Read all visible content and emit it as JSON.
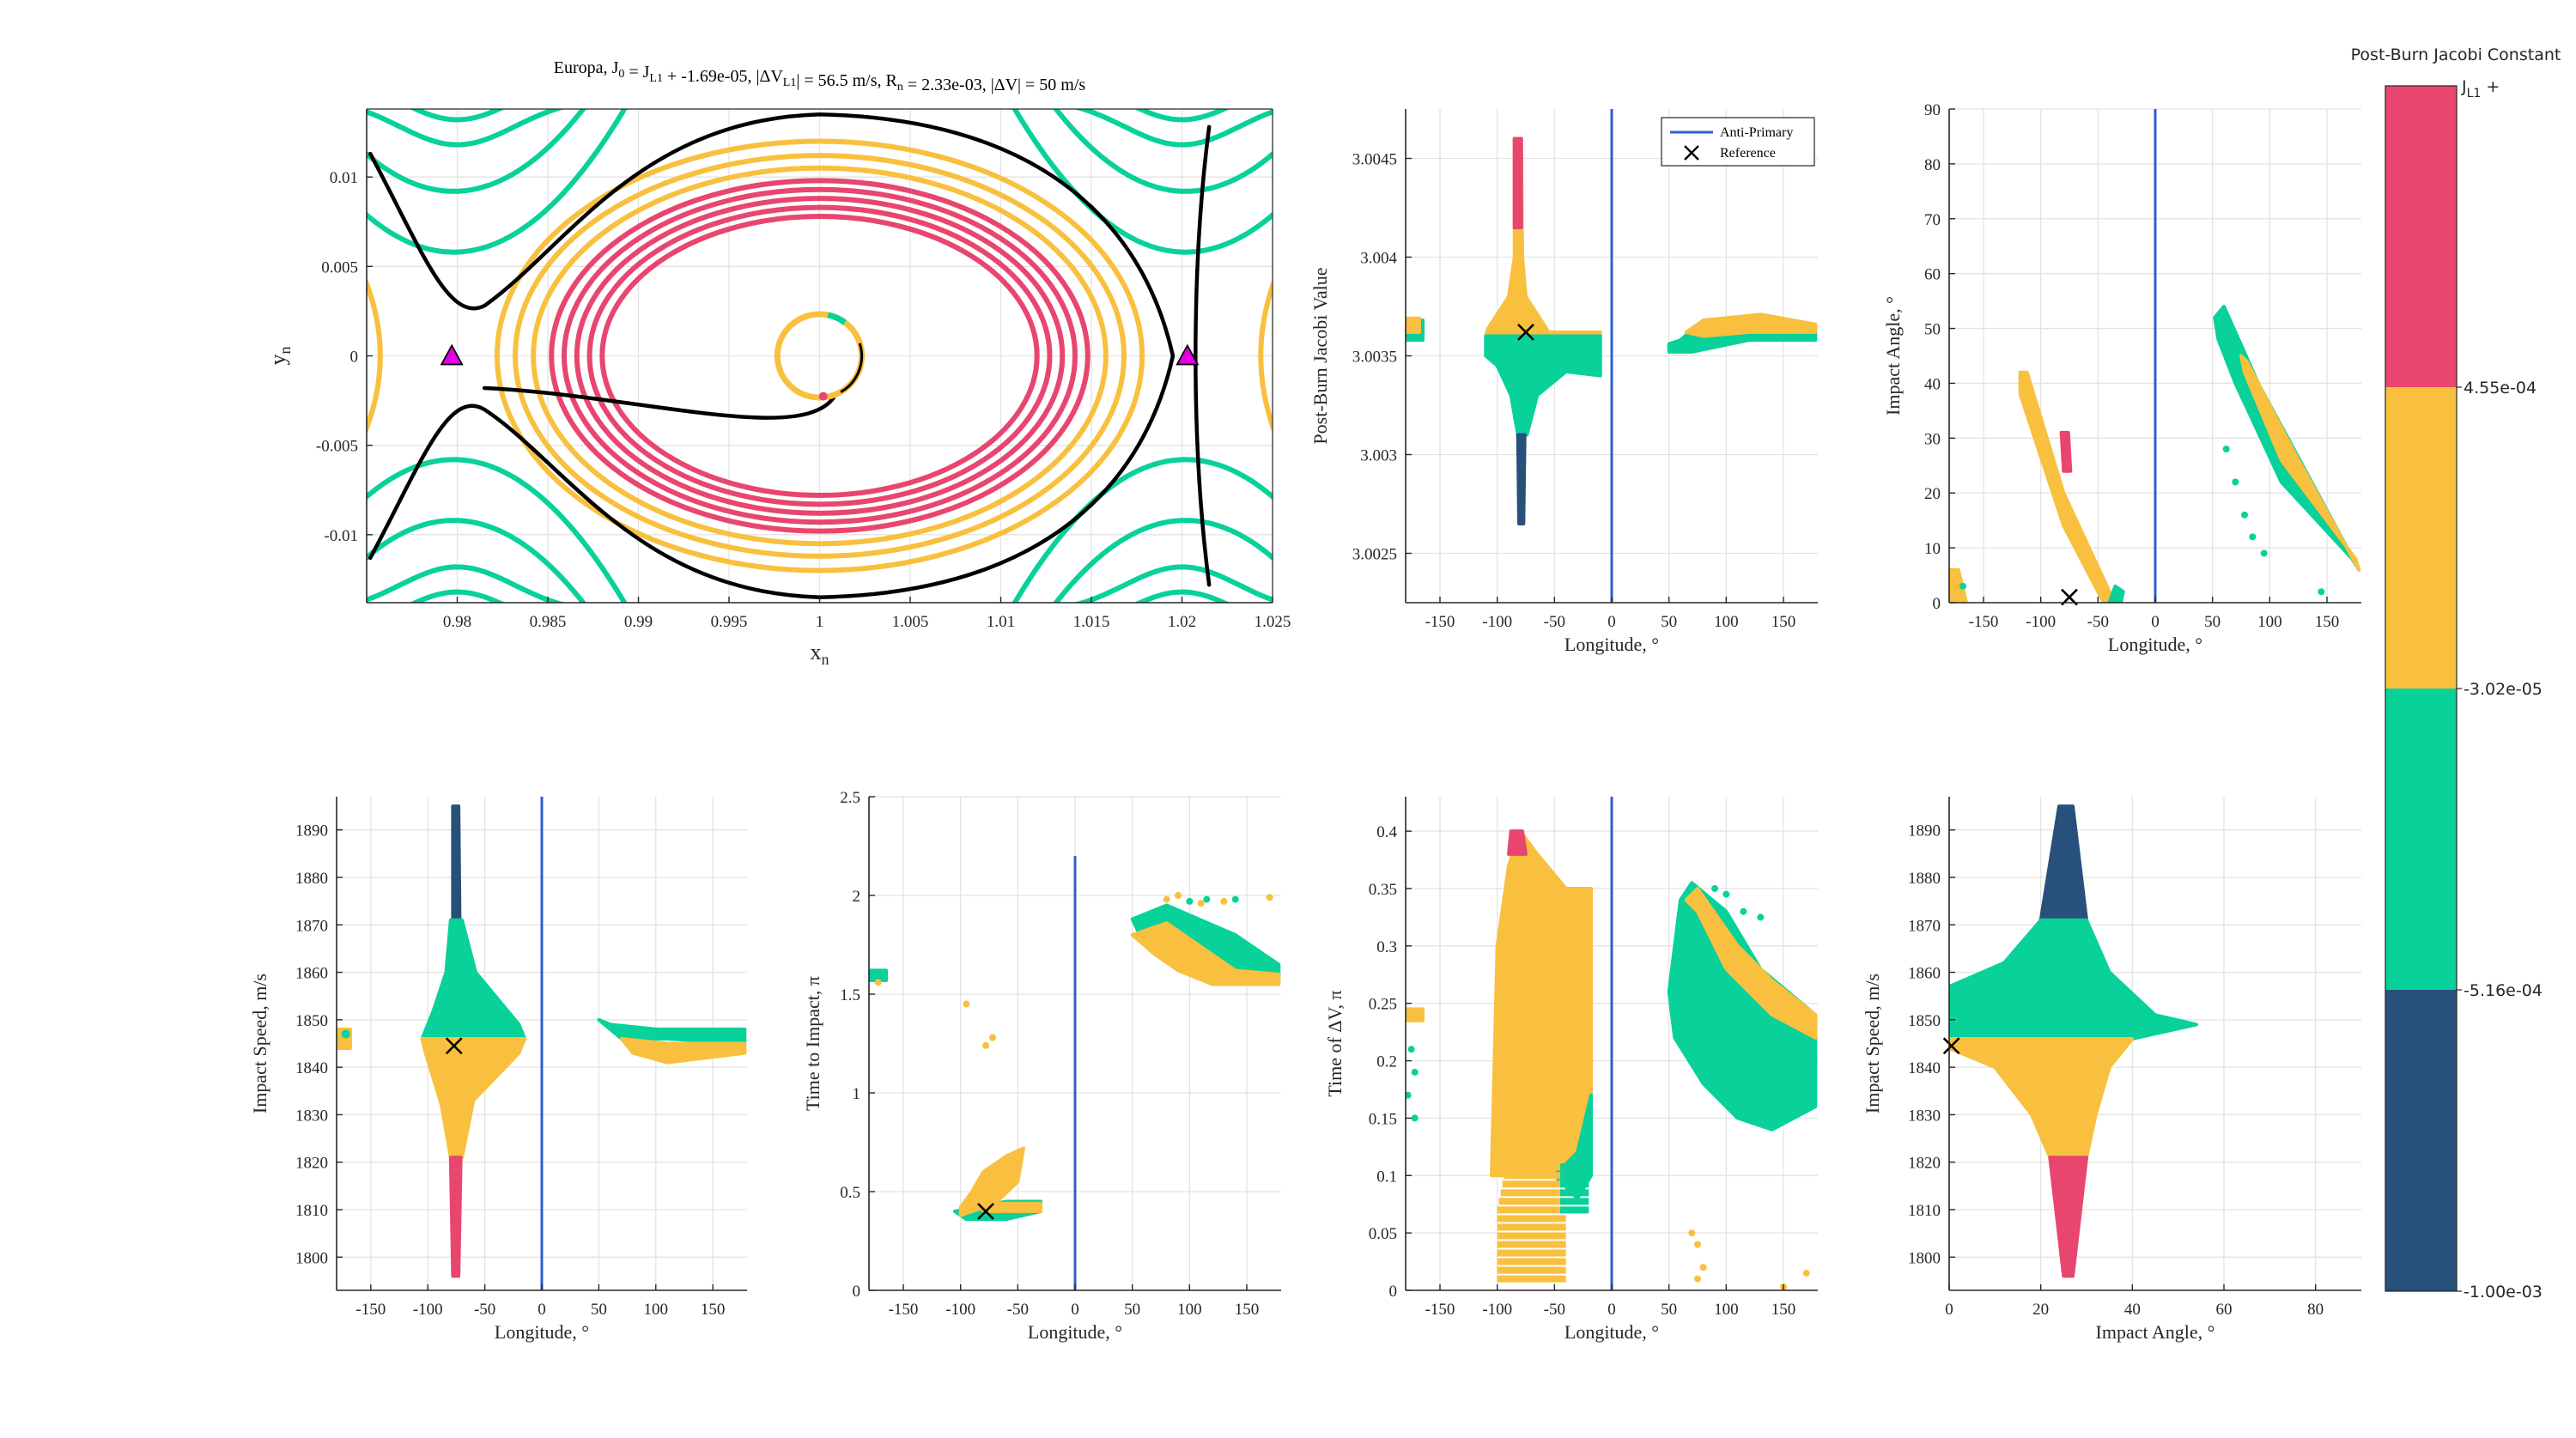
{
  "colors": {
    "red": "#E8466E",
    "yellow": "#F8C03E",
    "green": "#08D19A",
    "navy": "#27507A",
    "blue_line": "#2F5FD0",
    "black": "#000000",
    "magenta": "#E400E4",
    "grid": "#E3E3E3",
    "axis": "#262626"
  },
  "colorbar": {
    "title": "Post-Burn Jacobi Constant",
    "top_label": "J",
    "top_sub": "L1",
    "top_suffix": " +",
    "ticks": [
      "4.55e-04",
      "-3.02e-05",
      "-5.16e-04",
      "-1.00e-03"
    ]
  },
  "chart_data": [
    {
      "id": "panel-trajectory",
      "type": "line",
      "title": "Europa,     J",
      "title_parts": {
        "body": "Europa,",
        "j0": "J",
        "j0_sub": "0",
        "eq": " = J",
        "jl1_sub": "L1",
        "j_value": " + -1.69e-05,",
        "dvl1": "|ΔV",
        "dvl1_sub": "L1",
        "dvl1_value": "| = 56.5 m/s,",
        "rn": "R",
        "rn_sub": "n",
        "rn_value": " = 2.33e-03,",
        "dv_value": "|ΔV| = 50 m/s"
      },
      "xlabel": "x",
      "xlabel_sub": "n",
      "ylabel": "y",
      "ylabel_sub": "n",
      "xlim": [
        0.975,
        1.025
      ],
      "ylim": [
        -0.0138,
        0.0138
      ],
      "xticks": [
        0.98,
        0.985,
        0.99,
        0.995,
        1,
        1.005,
        1.01,
        1.015,
        1.02,
        1.025
      ],
      "xtick_labels": [
        "0.98",
        "0.985",
        "0.99",
        "0.995",
        "1",
        "1.005",
        "1.01",
        "1.015",
        "1.02",
        "1.025"
      ],
      "yticks": [
        -0.01,
        -0.005,
        0,
        0.005,
        0.01
      ],
      "ytick_labels": [
        "-0.01",
        "-0.005",
        "0",
        "0.005",
        "0.01"
      ],
      "lagrange_points": [
        [
          0.9797,
          0
        ],
        [
          1.0203,
          0
        ]
      ],
      "moon_center": [
        1.0,
        0.0
      ],
      "moon_radius": 0.00233,
      "red_rings_rx": [
        0.012,
        0.0127,
        0.0134,
        0.0141,
        0.0148
      ],
      "red_rings_ry": [
        0.0078,
        0.0083,
        0.0088,
        0.0093,
        0.0098
      ],
      "yellow_rings_rx": [
        0.0158,
        0.0168,
        0.0178
      ],
      "yellow_rings_ry": [
        0.0105,
        0.0112,
        0.012
      ]
    },
    {
      "id": "panel-jacobi-vs-longitude",
      "type": "scatter",
      "xlabel": "Longitude, °",
      "ylabel": "Post-Burn Jacobi Value",
      "xlim": [
        -180,
        180
      ],
      "ylim": [
        3.00225,
        3.00475
      ],
      "xticks": [
        -150,
        -100,
        -50,
        0,
        50,
        100,
        150
      ],
      "xtick_labels": [
        "-150",
        "-100",
        "-50",
        "0",
        "50",
        "100",
        "150"
      ],
      "yticks": [
        3.0025,
        3.003,
        3.0035,
        3.004,
        3.0045
      ],
      "ytick_labels": [
        "3.0025",
        "3.003",
        "3.0035",
        "3.004",
        "3.0045"
      ],
      "vline": 0,
      "reference": [
        -75,
        3.00362
      ],
      "legend": [
        "Anti-Primary",
        "Reference"
      ]
    },
    {
      "id": "panel-angle-vs-longitude",
      "type": "scatter",
      "xlabel": "Longitude, °",
      "ylabel": "Impact Angle, °",
      "xlim": [
        -180,
        180
      ],
      "ylim": [
        0,
        90
      ],
      "xticks": [
        -150,
        -100,
        -50,
        0,
        50,
        100,
        150
      ],
      "xtick_labels": [
        "-150",
        "-100",
        "-50",
        "0",
        "50",
        "100",
        "150"
      ],
      "yticks": [
        0,
        10,
        20,
        30,
        40,
        50,
        60,
        70,
        80,
        90
      ],
      "ytick_labels": [
        "0",
        "10",
        "20",
        "30",
        "40",
        "50",
        "60",
        "70",
        "80",
        "90"
      ],
      "vline": 0,
      "reference": [
        -75,
        1
      ]
    },
    {
      "id": "panel-speed-vs-longitude",
      "type": "scatter",
      "xlabel": "Longitude, °",
      "ylabel": "Impact Speed, m/s",
      "xlim": [
        -180,
        180
      ],
      "ylim": [
        1793,
        1897
      ],
      "xticks": [
        -150,
        -100,
        -50,
        0,
        50,
        100,
        150
      ],
      "xtick_labels": [
        "-150",
        "-100",
        "-50",
        "0",
        "50",
        "100",
        "150"
      ],
      "yticks": [
        1800,
        1810,
        1820,
        1830,
        1840,
        1850,
        1860,
        1870,
        1880,
        1890
      ],
      "ytick_labels": [
        "1800",
        "1810",
        "1820",
        "1830",
        "1840",
        "1850",
        "1860",
        "1870",
        "1880",
        "1890"
      ],
      "vline": 0,
      "reference": [
        -77,
        1844.5
      ]
    },
    {
      "id": "panel-tti-vs-longitude",
      "type": "scatter",
      "xlabel": "Longitude, °",
      "ylabel": "Time to Impact, π",
      "xlim": [
        -180,
        180
      ],
      "ylim": [
        0,
        2.5
      ],
      "xticks": [
        -150,
        -100,
        -50,
        0,
        50,
        100,
        150
      ],
      "xtick_labels": [
        "-150",
        "-100",
        "-50",
        "0",
        "50",
        "100",
        "150"
      ],
      "yticks": [
        0,
        0.5,
        1,
        1.5,
        2,
        2.5
      ],
      "ytick_labels": [
        "0",
        "0.5",
        "1",
        "1.5",
        "2",
        "2.5"
      ],
      "vline": 0,
      "vline_top": 2.2,
      "reference": [
        -78,
        0.4
      ]
    },
    {
      "id": "panel-tdv-vs-longitude",
      "type": "scatter",
      "xlabel": "Longitude, °",
      "ylabel": "Time of ΔV, π",
      "xlim": [
        -180,
        180
      ],
      "ylim": [
        0,
        0.43
      ],
      "xticks": [
        -150,
        -100,
        -50,
        0,
        50,
        100,
        150
      ],
      "xtick_labels": [
        "-150",
        "-100",
        "-50",
        "0",
        "50",
        "100",
        "150"
      ],
      "yticks": [
        0,
        0.05,
        0.1,
        0.15,
        0.2,
        0.25,
        0.3,
        0.35,
        0.4
      ],
      "ytick_labels": [
        "0",
        "0.05",
        "0.1",
        "0.15",
        "0.2",
        "0.25",
        "0.3",
        "0.35",
        "0.4"
      ],
      "vline": 0
    },
    {
      "id": "panel-speed-vs-angle",
      "type": "scatter",
      "xlabel": "Impact Angle, °",
      "ylabel": "Impact Speed, m/s",
      "xlim": [
        0,
        90
      ],
      "ylim": [
        1793,
        1897
      ],
      "xticks": [
        0,
        20,
        40,
        60,
        80
      ],
      "xtick_labels": [
        "0",
        "20",
        "40",
        "60",
        "80"
      ],
      "yticks": [
        1800,
        1810,
        1820,
        1830,
        1840,
        1850,
        1860,
        1870,
        1880,
        1890
      ],
      "ytick_labels": [
        "1800",
        "1810",
        "1820",
        "1830",
        "1840",
        "1850",
        "1860",
        "1870",
        "1880",
        "1890"
      ],
      "reference": [
        0.5,
        1844.5
      ]
    }
  ]
}
